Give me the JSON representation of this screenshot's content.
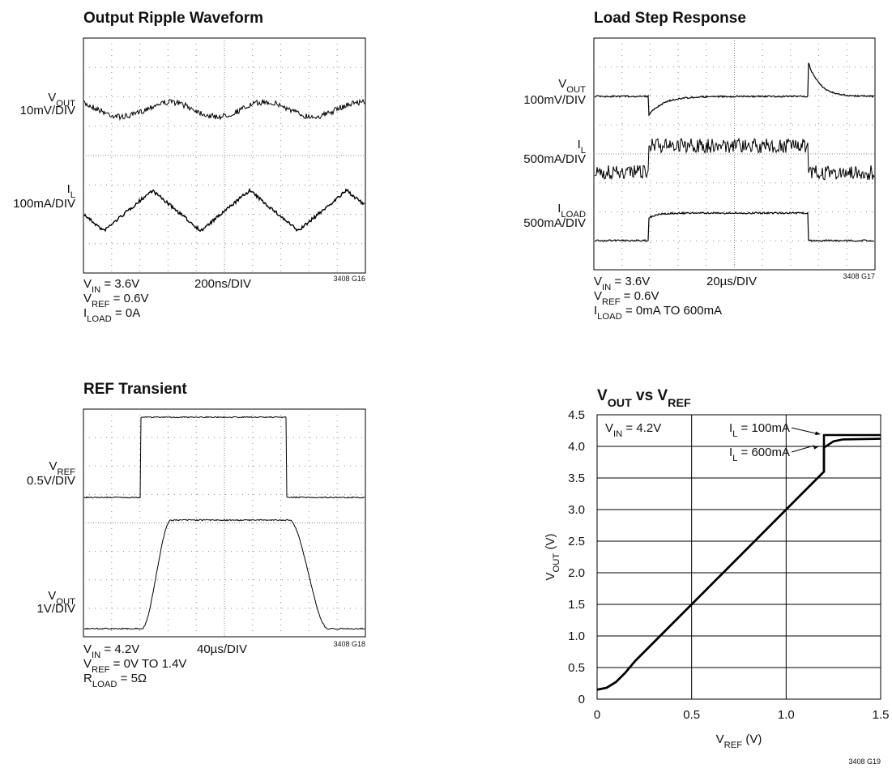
{
  "scopes": [
    {
      "title": "Output Ripple Waveform",
      "channels": [
        {
          "name": [
            "V",
            "OUT"
          ],
          "scale": "10mV/DIV"
        },
        {
          "name": [
            "I",
            "L"
          ],
          "scale": "100mA/DIV"
        }
      ],
      "timebase": "200ns/DIV",
      "notes": [
        [
          "V",
          "IN",
          " = 3.6V"
        ],
        [
          "V",
          "REF",
          " = 0.6V"
        ],
        [
          "I",
          "LOAD",
          " = 0A"
        ]
      ],
      "code": "3408 G16"
    },
    {
      "title": "Load Step Response",
      "channels": [
        {
          "name": [
            "V",
            "OUT"
          ],
          "scale": "100mV/DIV"
        },
        {
          "name": [
            "I",
            "L"
          ],
          "scale": "500mA/DIV"
        },
        {
          "name": [
            "I",
            "LOAD"
          ],
          "scale": "500mA/DIV"
        }
      ],
      "timebase": "20µs/DIV",
      "notes": [
        [
          "V",
          "IN",
          " = 3.6V"
        ],
        [
          "V",
          "REF",
          " = 0.6V"
        ],
        [
          "I",
          "LOAD",
          " = 0mA TO 600mA"
        ]
      ],
      "code": "3408 G17"
    },
    {
      "title": "REF Transient",
      "channels": [
        {
          "name": [
            "V",
            "REF"
          ],
          "scale": "0.5V/DIV"
        },
        {
          "name": [
            "V",
            "OUT"
          ],
          "scale": "1V/DIV"
        }
      ],
      "timebase": "40µs/DIV",
      "notes": [
        [
          "V",
          "IN",
          " = 4.2V"
        ],
        [
          "V",
          "REF",
          " = 0V TO 1.4V"
        ],
        [
          "R",
          "LOAD",
          " = 5Ω"
        ]
      ],
      "code": "3408 G18"
    }
  ],
  "chart_data": {
    "type": "line",
    "title": [
      "V",
      "OUT",
      " vs V",
      "REF"
    ],
    "xlabel": [
      "V",
      "REF",
      " (V)"
    ],
    "ylabel": [
      "V",
      "OUT",
      " (V)"
    ],
    "x": [
      0,
      0.05,
      0.1,
      0.15,
      0.2,
      0.3,
      0.5,
      0.8,
      1.0,
      1.2,
      1.2,
      1.25,
      1.3,
      1.5
    ],
    "series": [
      {
        "name": [
          "I",
          "L",
          " = 100mA"
        ],
        "color": "#000000",
        "values": [
          0.15,
          0.18,
          0.27,
          0.42,
          0.6,
          0.9,
          1.5,
          2.4,
          3.0,
          3.6,
          4.18,
          4.18,
          4.18,
          4.18
        ]
      },
      {
        "name": [
          "I",
          "L",
          " = 600mA"
        ],
        "color": "#000000",
        "values": [
          0.15,
          0.18,
          0.27,
          0.42,
          0.6,
          0.9,
          1.5,
          2.4,
          3.0,
          3.6,
          3.98,
          4.08,
          4.11,
          4.12
        ]
      }
    ],
    "annotations": [
      [
        "V",
        "IN",
        " = 4.2V"
      ]
    ],
    "xlim": [
      0,
      1.5
    ],
    "xticks": [
      0,
      0.5,
      {
        "value": 1,
        "label": "1.0"
      },
      1.5
    ],
    "ylim": [
      0,
      4.5
    ],
    "yticks": [
      0,
      0.5,
      {
        "value": 1,
        "label": "1.0"
      },
      1.5,
      {
        "value": 2,
        "label": "2.0"
      },
      2.5,
      {
        "value": 3,
        "label": "3.0"
      },
      3.5,
      {
        "value": 4,
        "label": "4.0"
      },
      4.5
    ],
    "grid": true,
    "code": "3408 G19"
  }
}
